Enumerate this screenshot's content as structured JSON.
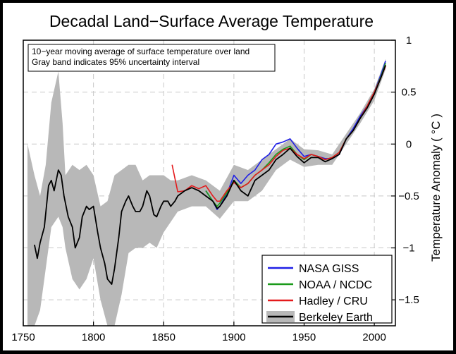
{
  "chart_data": {
    "type": "line",
    "title": "Decadal Land−Surface Average Temperature",
    "annotation": [
      "10−year moving average of surface temperature over land",
      "Gray band indicates 95% uncertainty interval"
    ],
    "xlabel": "",
    "ylabel": "Temperature Anomaly ( °C )",
    "xlim": [
      1750,
      2015
    ],
    "ylim": [
      -1.75,
      1.0
    ],
    "x_ticks": [
      1750,
      1800,
      1850,
      1900,
      1950,
      2000
    ],
    "y_ticks": [
      1,
      0.5,
      0,
      -0.5,
      -1,
      -1.5
    ],
    "y_tick_labels": [
      "1",
      "0.5",
      "0",
      "−0.5",
      "−1",
      "−1.5"
    ],
    "grid": true,
    "legend_position": "bottom-right",
    "legend": [
      "NASA GISS",
      "NOAA / NCDC",
      "Hadley / CRU",
      "Berkeley Earth"
    ],
    "colors": {
      "nasa": "#1f1fe6",
      "noaa": "#1a9a1a",
      "hadley": "#e41a1c",
      "berkeley": "#000000",
      "band": "#b8b8b8"
    },
    "series": [
      {
        "name": "NASA GISS",
        "x": [
          1880,
          1885,
          1888,
          1890,
          1895,
          1900,
          1905,
          1910,
          1915,
          1920,
          1925,
          1930,
          1935,
          1940,
          1945,
          1950,
          1955,
          1960,
          1965,
          1970,
          1975,
          1980,
          1985,
          1990,
          1995,
          2000,
          2005,
          2008
        ],
        "y": [
          -0.45,
          -0.55,
          -0.63,
          -0.6,
          -0.48,
          -0.3,
          -0.38,
          -0.3,
          -0.25,
          -0.15,
          -0.1,
          0.0,
          0.02,
          0.05,
          -0.04,
          -0.12,
          -0.1,
          -0.12,
          -0.14,
          -0.14,
          -0.1,
          0.05,
          0.15,
          0.27,
          0.37,
          0.5,
          0.68,
          0.8
        ]
      },
      {
        "name": "NOAA / NCDC",
        "x": [
          1880,
          1885,
          1888,
          1890,
          1895,
          1900,
          1905,
          1910,
          1915,
          1920,
          1925,
          1930,
          1935,
          1940,
          1945,
          1950,
          1955,
          1960,
          1965,
          1970,
          1975,
          1980,
          1985,
          1990,
          1995,
          2000,
          2005,
          2008
        ],
        "y": [
          -0.45,
          -0.55,
          -0.6,
          -0.57,
          -0.47,
          -0.35,
          -0.42,
          -0.38,
          -0.3,
          -0.25,
          -0.18,
          -0.1,
          -0.05,
          -0.02,
          -0.1,
          -0.15,
          -0.1,
          -0.12,
          -0.15,
          -0.13,
          -0.08,
          0.05,
          0.13,
          0.25,
          0.37,
          0.5,
          0.66,
          0.78
        ]
      },
      {
        "name": "Hadley / CRU",
        "x": [
          1856,
          1858,
          1860,
          1865,
          1870,
          1875,
          1880,
          1885,
          1888,
          1890,
          1895,
          1900,
          1905,
          1910,
          1915,
          1920,
          1925,
          1930,
          1935,
          1940,
          1945,
          1950,
          1955,
          1960,
          1965,
          1970,
          1975,
          1980,
          1985,
          1990,
          1995,
          2000,
          2005,
          2008
        ],
        "y": [
          -0.2,
          -0.33,
          -0.46,
          -0.45,
          -0.4,
          -0.43,
          -0.4,
          -0.5,
          -0.55,
          -0.55,
          -0.45,
          -0.37,
          -0.42,
          -0.38,
          -0.3,
          -0.25,
          -0.2,
          -0.12,
          -0.06,
          -0.04,
          -0.1,
          -0.14,
          -0.1,
          -0.12,
          -0.15,
          -0.13,
          -0.08,
          0.05,
          0.13,
          0.25,
          0.37,
          0.5,
          0.65,
          0.75
        ]
      },
      {
        "name": "Berkeley Earth",
        "x": [
          1758,
          1760,
          1762,
          1765,
          1768,
          1770,
          1772,
          1775,
          1777,
          1779,
          1782,
          1785,
          1787,
          1790,
          1792,
          1795,
          1797,
          1800,
          1803,
          1805,
          1808,
          1810,
          1813,
          1815,
          1818,
          1820,
          1823,
          1825,
          1828,
          1830,
          1833,
          1835,
          1838,
          1840,
          1843,
          1845,
          1848,
          1850,
          1853,
          1855,
          1858,
          1860,
          1865,
          1870,
          1875,
          1880,
          1885,
          1888,
          1890,
          1895,
          1900,
          1905,
          1910,
          1915,
          1920,
          1925,
          1930,
          1935,
          1940,
          1945,
          1950,
          1955,
          1960,
          1965,
          1970,
          1975,
          1980,
          1985,
          1990,
          1995,
          2000,
          2005,
          2008
        ],
        "y": [
          -0.97,
          -1.1,
          -0.95,
          -0.8,
          -0.4,
          -0.35,
          -0.45,
          -0.25,
          -0.3,
          -0.5,
          -0.7,
          -0.8,
          -1.0,
          -0.9,
          -0.7,
          -0.6,
          -0.63,
          -0.6,
          -0.85,
          -1.0,
          -1.15,
          -1.3,
          -1.35,
          -1.2,
          -0.9,
          -0.65,
          -0.55,
          -0.5,
          -0.6,
          -0.65,
          -0.65,
          -0.6,
          -0.45,
          -0.5,
          -0.68,
          -0.7,
          -0.6,
          -0.55,
          -0.55,
          -0.6,
          -0.55,
          -0.5,
          -0.45,
          -0.42,
          -0.45,
          -0.5,
          -0.55,
          -0.62,
          -0.6,
          -0.5,
          -0.35,
          -0.45,
          -0.5,
          -0.35,
          -0.3,
          -0.25,
          -0.15,
          -0.1,
          -0.04,
          -0.12,
          -0.18,
          -0.13,
          -0.13,
          -0.17,
          -0.14,
          -0.1,
          0.05,
          0.13,
          0.25,
          0.35,
          0.48,
          0.65,
          0.76
        ]
      }
    ],
    "uncertainty_band": {
      "name": "95% uncertainty interval",
      "x": [
        1753,
        1758,
        1762,
        1766,
        1770,
        1775,
        1778,
        1780,
        1785,
        1790,
        1795,
        1800,
        1805,
        1810,
        1815,
        1820,
        1825,
        1830,
        1835,
        1840,
        1845,
        1850,
        1855,
        1860,
        1870,
        1880,
        1890,
        1900,
        1910,
        1920,
        1930,
        1940,
        1950,
        1960,
        1970,
        1980,
        1990,
        2000,
        2008
      ],
      "lower": [
        -1.75,
        -1.75,
        -1.6,
        -1.2,
        -0.8,
        -0.7,
        -0.8,
        -1.0,
        -1.3,
        -1.4,
        -1.3,
        -1.1,
        -1.5,
        -1.75,
        -1.75,
        -1.45,
        -1.05,
        -1.0,
        -1.0,
        -0.95,
        -1.0,
        -0.85,
        -0.75,
        -0.65,
        -0.6,
        -0.6,
        -0.72,
        -0.55,
        -0.55,
        -0.45,
        -0.25,
        -0.15,
        -0.22,
        -0.2,
        -0.2,
        0.0,
        0.2,
        0.42,
        0.72
      ],
      "upper": [
        0.0,
        -0.3,
        -0.5,
        -0.2,
        0.4,
        0.7,
        0.2,
        -0.3,
        -0.2,
        -0.25,
        -0.2,
        -0.3,
        -0.6,
        -0.55,
        -0.3,
        -0.25,
        -0.2,
        -0.2,
        -0.35,
        -0.3,
        -0.3,
        -0.3,
        -0.35,
        -0.35,
        -0.3,
        -0.35,
        -0.45,
        -0.2,
        -0.25,
        -0.15,
        -0.05,
        0.05,
        -0.05,
        -0.06,
        -0.1,
        0.1,
        0.3,
        0.53,
        0.82
      ]
    }
  }
}
